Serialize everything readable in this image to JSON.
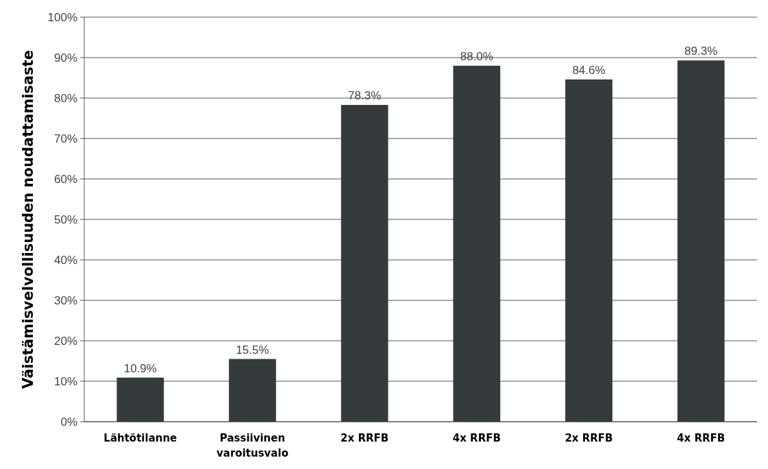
{
  "chart_data": {
    "type": "bar",
    "ylabel": "Väistämisvelvollisuuden noudattamisaste",
    "categories": [
      "Lähtötilanne",
      "Passiivinen varoitusvalo",
      "2x RRFB",
      "4x RRFB",
      "2x RRFB",
      "4x RRFB"
    ],
    "values": [
      10.9,
      15.5,
      78.3,
      88.0,
      84.6,
      89.3
    ],
    "value_labels": [
      "10.9%",
      "15.5%",
      "78.3%",
      "88.0%",
      "84.6%",
      "89.3%"
    ],
    "color": "#353b3d",
    "ylim": [
      0,
      100
    ],
    "yticks": [
      {
        "value": 0,
        "label": "0%"
      },
      {
        "value": 10,
        "label": "10%"
      },
      {
        "value": 20,
        "label": "20%"
      },
      {
        "value": 30,
        "label": "30%"
      },
      {
        "value": 40,
        "label": "40%"
      },
      {
        "value": 50,
        "label": "50%"
      },
      {
        "value": 60,
        "label": "60%"
      },
      {
        "value": 70,
        "label": "70%"
      },
      {
        "value": 80,
        "label": "80%"
      },
      {
        "value": 90,
        "label": "90%"
      },
      {
        "value": 100,
        "label": "100%"
      }
    ],
    "grid": "y"
  }
}
